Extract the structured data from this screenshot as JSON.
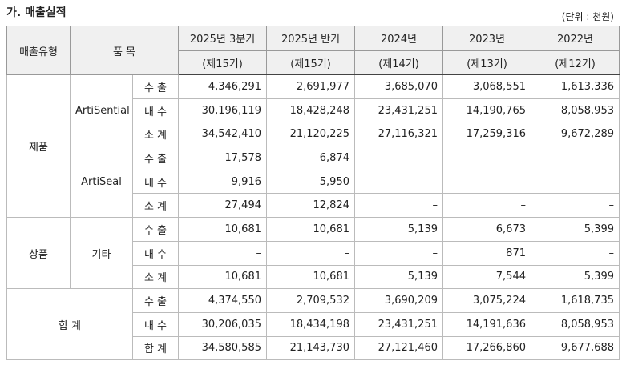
{
  "header": {
    "title": "가. 매출실적",
    "unit": "(단위 : 천원)"
  },
  "table": {
    "columns": {
      "type": "매출유형",
      "item": "품 목",
      "periods": [
        {
          "label": "2025년 3분기",
          "term": "(제15기)"
        },
        {
          "label": "2025년 반기",
          "term": "(제15기)"
        },
        {
          "label": "2024년",
          "term": "(제14기)"
        },
        {
          "label": "2023년",
          "term": "(제13기)"
        },
        {
          "label": "2022년",
          "term": "(제12기)"
        }
      ]
    },
    "groups": [
      {
        "type": "제품",
        "items": [
          {
            "name": "ArtiSential",
            "rows": [
              {
                "label": "수 출",
                "values": [
                  "4,346,291",
                  "2,691,977",
                  "3,685,070",
                  "3,068,551",
                  "1,613,336"
                ]
              },
              {
                "label": "내 수",
                "values": [
                  "30,196,119",
                  "18,428,248",
                  "23,431,251",
                  "14,190,765",
                  "8,058,953"
                ]
              },
              {
                "label": "소 계",
                "values": [
                  "34,542,410",
                  "21,120,225",
                  "27,116,321",
                  "17,259,316",
                  "9,672,289"
                ]
              }
            ]
          },
          {
            "name": "ArtiSeal",
            "rows": [
              {
                "label": "수 출",
                "values": [
                  "17,578",
                  "6,874",
                  "–",
                  "–",
                  "–"
                ]
              },
              {
                "label": "내 수",
                "values": [
                  "9,916",
                  "5,950",
                  "–",
                  "–",
                  "–"
                ]
              },
              {
                "label": "소 계",
                "values": [
                  "27,494",
                  "12,824",
                  "–",
                  "–",
                  "–"
                ]
              }
            ]
          }
        ]
      },
      {
        "type": "상품",
        "items": [
          {
            "name": "기타",
            "rows": [
              {
                "label": "수 출",
                "values": [
                  "10,681",
                  "10,681",
                  "5,139",
                  "6,673",
                  "5,399"
                ]
              },
              {
                "label": "내 수",
                "values": [
                  "–",
                  "–",
                  "–",
                  "871",
                  "–"
                ]
              },
              {
                "label": "소 계",
                "values": [
                  "10,681",
                  "10,681",
                  "5,139",
                  "7,544",
                  "5,399"
                ]
              }
            ]
          }
        ]
      }
    ],
    "total": {
      "label": "합 계",
      "rows": [
        {
          "label": "수 출",
          "values": [
            "4,374,550",
            "2,709,532",
            "3,690,209",
            "3,075,224",
            "1,618,735"
          ]
        },
        {
          "label": "내 수",
          "values": [
            "30,206,035",
            "18,434,198",
            "23,431,251",
            "14,191,636",
            "8,058,953"
          ]
        },
        {
          "label": "합 계",
          "values": [
            "34,580,585",
            "21,143,730",
            "27,121,460",
            "17,266,860",
            "9,677,688"
          ]
        }
      ]
    }
  }
}
